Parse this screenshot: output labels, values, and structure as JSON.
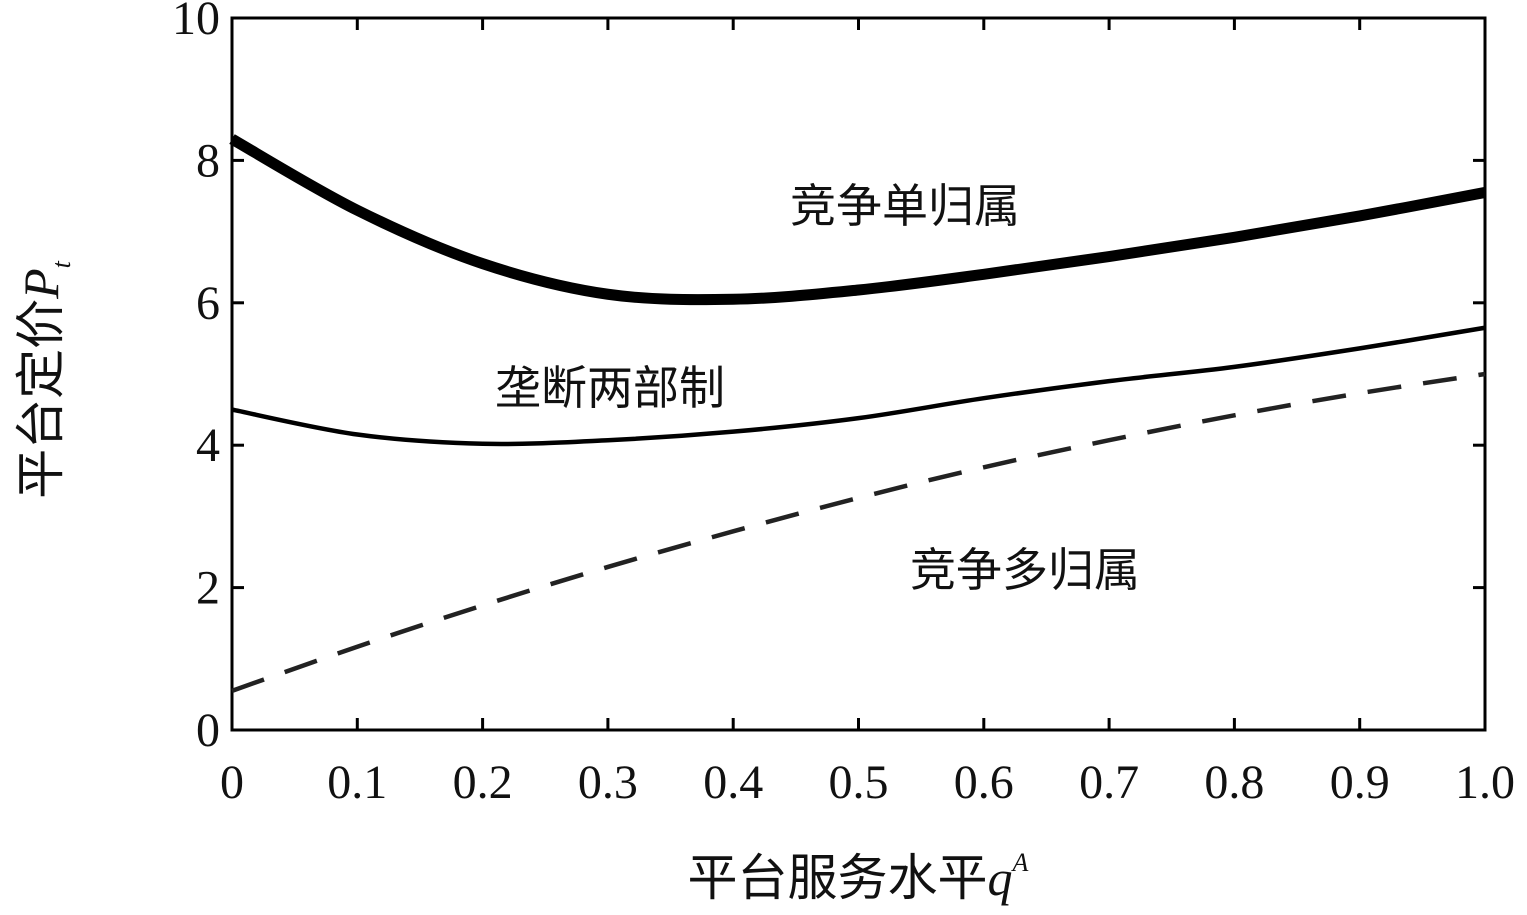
{
  "chart_data": {
    "type": "line",
    "x_label": {
      "text": "平台服务水平",
      "symbol": "q",
      "superscript": "A"
    },
    "y_label": {
      "text": "平台定价",
      "symbol": "P",
      "subscript": "t"
    },
    "xlim": [
      0,
      1
    ],
    "ylim": [
      0,
      10
    ],
    "xticks": [
      0,
      0.1,
      0.2,
      0.3,
      0.4,
      0.5,
      0.6,
      0.7,
      0.8,
      0.9,
      {
        "value": 1,
        "label": "1.0"
      }
    ],
    "yticks": [
      0,
      2,
      4,
      6,
      8,
      10
    ],
    "series": [
      {
        "name": "竞争单归属",
        "color": "#000000",
        "x": [
          0,
          0.1,
          0.2,
          0.3,
          0.4,
          0.5,
          0.6,
          0.7,
          0.8,
          0.9,
          1
        ],
        "values": [
          8.3,
          7.3,
          6.55,
          6.12,
          6.05,
          6.18,
          6.4,
          6.65,
          6.92,
          7.22,
          7.55
        ]
      },
      {
        "name": "垄断两部制",
        "color": "#000000",
        "x": [
          0,
          0.1,
          0.2,
          0.3,
          0.4,
          0.5,
          0.6,
          0.7,
          0.8,
          0.9,
          1
        ],
        "values": [
          4.5,
          4.15,
          4.02,
          4.07,
          4.19,
          4.38,
          4.66,
          4.9,
          5.1,
          5.36,
          5.65
        ]
      },
      {
        "name": "竞争多归属",
        "color": "#222222",
        "x": [
          0,
          0.1,
          0.2,
          0.3,
          0.4,
          0.5,
          0.6,
          0.7,
          0.8,
          0.9,
          1
        ],
        "values": [
          0.55,
          1.17,
          1.75,
          2.29,
          2.79,
          3.26,
          3.69,
          4.07,
          4.42,
          4.73,
          5.0
        ]
      }
    ]
  }
}
